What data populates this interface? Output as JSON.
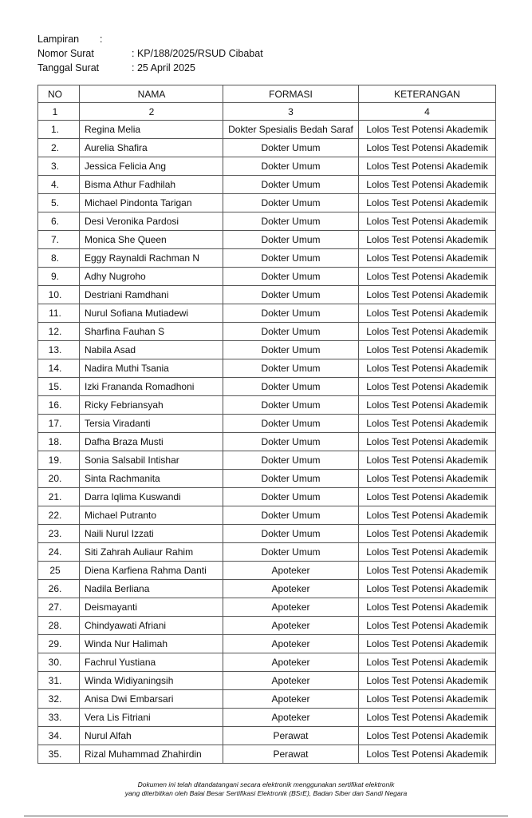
{
  "header": {
    "items": [
      {
        "label": "Lampiran",
        "value": ":"
      },
      {
        "label": "Nomor Surat",
        "value": ": KP/188/2025/RSUD Cibabat"
      },
      {
        "label": "Tanggal Surat",
        "value": ": 25 April 2025"
      }
    ]
  },
  "table": {
    "columns": [
      "NO",
      "NAMA",
      "FORMASI",
      "KETERANGAN"
    ],
    "numbers": [
      "1",
      "2",
      "3",
      "4"
    ],
    "rows": [
      [
        "1.",
        "Regina Melia",
        "Dokter Spesialis Bedah Saraf",
        "Lolos Test Potensi Akademik"
      ],
      [
        "2.",
        "Aurelia Shafira",
        "Dokter Umum",
        "Lolos Test Potensi Akademik"
      ],
      [
        "3.",
        "Jessica Felicia Ang",
        "Dokter Umum",
        "Lolos Test Potensi Akademik"
      ],
      [
        "4.",
        "Bisma Athur Fadhilah",
        "Dokter Umum",
        "Lolos Test Potensi Akademik"
      ],
      [
        "5.",
        "Michael Pindonta Tarigan",
        "Dokter Umum",
        "Lolos Test Potensi Akademik"
      ],
      [
        "6.",
        "Desi Veronika Pardosi",
        "Dokter Umum",
        "Lolos Test Potensi Akademik"
      ],
      [
        "7.",
        "Monica She Queen",
        "Dokter Umum",
        "Lolos Test Potensi Akademik"
      ],
      [
        "8.",
        "Eggy Raynaldi Rachman N",
        "Dokter Umum",
        "Lolos Test Potensi Akademik"
      ],
      [
        "9.",
        "Adhy Nugroho",
        "Dokter Umum",
        "Lolos Test Potensi Akademik"
      ],
      [
        "10.",
        "Destriani Ramdhani",
        "Dokter Umum",
        "Lolos Test Potensi Akademik"
      ],
      [
        "11.",
        "Nurul Sofiana Mutiadewi",
        "Dokter Umum",
        "Lolos Test Potensi Akademik"
      ],
      [
        "12.",
        "Sharfina Fauhan S",
        "Dokter Umum",
        "Lolos Test Potensi Akademik"
      ],
      [
        "13.",
        "Nabila Asad",
        "Dokter Umum",
        "Lolos Test Potensi Akademik"
      ],
      [
        "14.",
        "Nadira Muthi Tsania",
        "Dokter Umum",
        "Lolos Test Potensi Akademik"
      ],
      [
        "15.",
        "Izki Frananda Romadhoni",
        "Dokter Umum",
        "Lolos Test Potensi Akademik"
      ],
      [
        "16.",
        "Ricky Febriansyah",
        "Dokter Umum",
        "Lolos Test Potensi Akademik"
      ],
      [
        "17.",
        "Tersia Viradanti",
        "Dokter Umum",
        "Lolos Test Potensi Akademik"
      ],
      [
        "18.",
        "Dafha Braza Musti",
        "Dokter Umum",
        "Lolos Test Potensi Akademik"
      ],
      [
        "19.",
        "Sonia Salsabil Intishar",
        "Dokter Umum",
        "Lolos Test Potensi Akademik"
      ],
      [
        "20.",
        "Sinta Rachmanita",
        "Dokter Umum",
        "Lolos Test Potensi Akademik"
      ],
      [
        "21.",
        "Darra Iqlima Kuswandi",
        "Dokter Umum",
        "Lolos Test Potensi Akademik"
      ],
      [
        "22.",
        "Michael Putranto",
        "Dokter Umum",
        "Lolos Test Potensi Akademik"
      ],
      [
        "23.",
        "Naili Nurul Izzati",
        "Dokter Umum",
        "Lolos Test Potensi Akademik"
      ],
      [
        "24.",
        "Siti Zahrah Auliaur Rahim",
        "Dokter Umum",
        "Lolos Test Potensi Akademik"
      ],
      [
        "25",
        "Diena Karfiena Rahma Danti",
        "Apoteker",
        "Lolos Test Potensi Akademik"
      ],
      [
        "26.",
        "Nadila Berliana",
        "Apoteker",
        "Lolos Test Potensi Akademik"
      ],
      [
        "27.",
        "Deismayanti",
        "Apoteker",
        "Lolos Test Potensi Akademik"
      ],
      [
        "28.",
        "Chindyawati Afriani",
        "Apoteker",
        "Lolos Test Potensi Akademik"
      ],
      [
        "29.",
        "Winda Nur Halimah",
        "Apoteker",
        "Lolos Test Potensi Akademik"
      ],
      [
        "30.",
        "Fachrul Yustiana",
        "Apoteker",
        "Lolos Test Potensi Akademik"
      ],
      [
        "31.",
        "Winda Widiyaningsih",
        "Apoteker",
        "Lolos Test Potensi Akademik"
      ],
      [
        "32.",
        "Anisa Dwi Embarsari",
        "Apoteker",
        "Lolos Test Potensi Akademik"
      ],
      [
        "33.",
        "Vera Lis Fitriani",
        "Apoteker",
        "Lolos Test Potensi Akademik"
      ],
      [
        "34.",
        "Nurul Alfah",
        "Perawat",
        "Lolos Test Potensi Akademik"
      ],
      [
        "35.",
        "Rizal Muhammad Zhahirdin",
        "Perawat",
        "Lolos Test Potensi Akademik"
      ]
    ]
  },
  "footer": {
    "lines": [
      "Dokumen ini telah ditandatangani secara elektronik menggunakan sertifikat elektronik",
      "yang diterbitkan oleh Balai Besar Sertifikasi Elektronik (BSrE), Badan Siber dan Sandi Negara"
    ]
  }
}
